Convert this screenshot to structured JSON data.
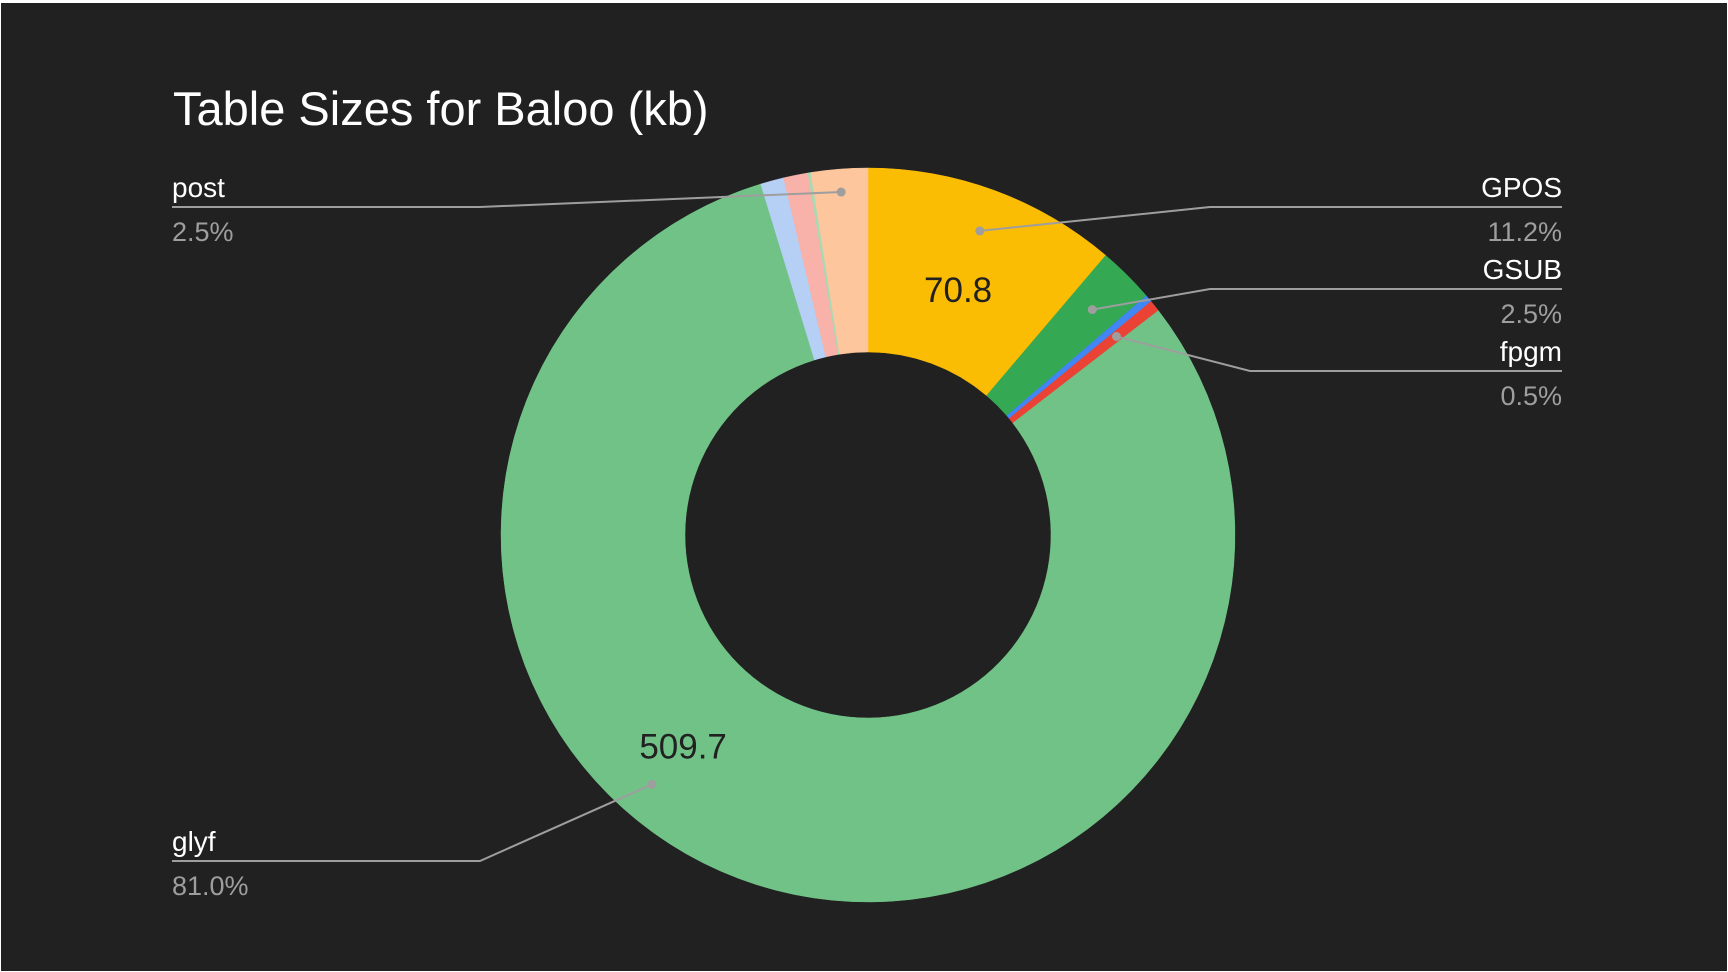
{
  "chart_data": {
    "type": "pie",
    "donut": true,
    "title": "Table Sizes for Baloo (kb)",
    "unit": "kb",
    "slices": [
      {
        "name": "GPOS",
        "value": 70.8,
        "percent": "11.2%",
        "color": "#fbbc04",
        "value_label": "70.8",
        "label_side": "right"
      },
      {
        "name": "GSUB",
        "value": 15.7,
        "percent": "2.5%",
        "color": "#34a853",
        "label_side": "right"
      },
      {
        "name": "",
        "value": 2.0,
        "color": "#4285f4"
      },
      {
        "name": "fpgm",
        "value": 3.2,
        "percent": "0.5%",
        "color": "#ea4335",
        "label_side": "right"
      },
      {
        "name": "glyf",
        "value": 509.7,
        "percent": "81.0%",
        "color": "#71c287",
        "value_label": "509.7",
        "label_side": "left"
      },
      {
        "name": "",
        "value": 6.5,
        "color": "#b6cff5"
      },
      {
        "name": "",
        "value": 6.8,
        "color": "#f8b2a9"
      },
      {
        "name": "",
        "value": 0.8,
        "color": "#a8dab5"
      },
      {
        "name": "post",
        "value": 15.7,
        "percent": "2.5%",
        "color": "#fdc69c",
        "label_side": "left"
      }
    ],
    "legend": "labeled callouts",
    "start_angle": "12 o'clock, clockwise"
  },
  "colors": {
    "background": "#212121",
    "title_text": "#ffffff",
    "callout_name": "#ffffff",
    "callout_percent": "#9e9e9e",
    "leader_line": "#9e9e9e",
    "value_label": "#212121"
  }
}
